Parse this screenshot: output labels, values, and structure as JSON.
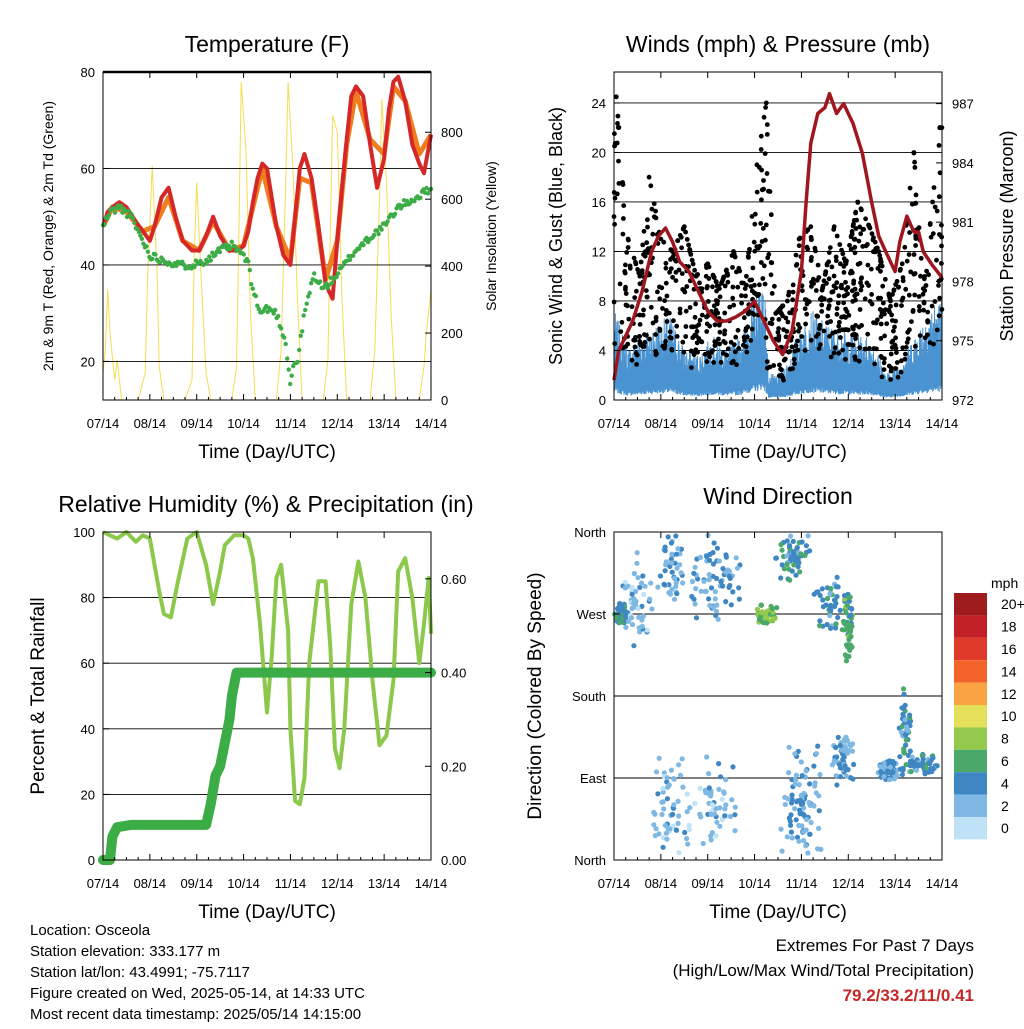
{
  "x_ticks": [
    "07/14",
    "08/14",
    "09/14",
    "10/14",
    "11/14",
    "12/14",
    "13/14",
    "14/14"
  ],
  "x_label": "Time (Day/UTC)",
  "colors": {
    "temp2m": "#d62728",
    "temp9m": "#f07d1d",
    "dew": "#3cac46",
    "solar": "#f5dd52",
    "gust": "#000000",
    "wind": "#4a93d1",
    "pressure": "#a0161f",
    "rh": "#8cc84b",
    "rain": "#3cac46",
    "extremes_values": "#c62828"
  },
  "colorbar": {
    "unit": "mph",
    "labels": [
      "20+",
      "18",
      "16",
      "14",
      "12",
      "10",
      "8",
      "6",
      "4",
      "2",
      "0"
    ],
    "colors": [
      "#9e1b1e",
      "#c12026",
      "#e03b2a",
      "#f2632a",
      "#f9a343",
      "#e4e05a",
      "#93c94d",
      "#4aa86a",
      "#3f87c2",
      "#7fb8e3",
      "#bfe2f7"
    ]
  },
  "chart_data": [
    {
      "type": "line",
      "title": "Temperature (F)",
      "xlabel": "Time (Day/UTC)",
      "ylabel": "2m & 9m T (Red, Orange) & 2m Td (Green)",
      "ylabel_right": "Solar Insolation (Yellow)",
      "xlim": [
        0,
        7
      ],
      "ylim": [
        12,
        80
      ],
      "y_ticks": [
        20,
        40,
        60,
        80
      ],
      "ylim_right": [
        0,
        980
      ],
      "y_ticks_right": [
        0,
        200,
        400,
        600,
        800
      ],
      "grid": true,
      "series": [
        {
          "key": "temp2m",
          "x": [
            0,
            0.1,
            0.2,
            0.35,
            0.5,
            0.7,
            0.85,
            1.0,
            1.1,
            1.25,
            1.4,
            1.55,
            1.7,
            1.9,
            2.05,
            2.2,
            2.35,
            2.5,
            2.7,
            2.9,
            3.0,
            3.1,
            3.2,
            3.3,
            3.4,
            3.5,
            3.7,
            3.85,
            4.0,
            4.1,
            4.2,
            4.3,
            4.45,
            4.6,
            4.75,
            4.9,
            5.0,
            5.1,
            5.2,
            5.3,
            5.4,
            5.55,
            5.7,
            5.85,
            6.0,
            6.1,
            6.2,
            6.3,
            6.45,
            6.6,
            6.75,
            6.85,
            7.0
          ],
          "y": [
            48,
            51,
            52,
            53,
            52,
            49,
            47,
            45,
            48,
            54,
            56,
            50,
            45,
            43,
            43,
            46,
            50,
            46,
            43,
            43,
            44,
            47,
            53,
            58,
            61,
            60,
            48,
            42,
            40,
            50,
            60,
            63,
            58,
            48,
            36,
            33,
            45,
            56,
            66,
            75,
            77,
            75,
            65,
            56,
            62,
            72,
            78,
            79,
            74,
            65,
            61,
            59,
            67
          ]
        },
        {
          "key": "temp9m",
          "x": [
            0,
            0.2,
            0.5,
            0.85,
            1.1,
            1.4,
            1.7,
            2.05,
            2.35,
            2.7,
            3.0,
            3.2,
            3.4,
            3.7,
            4.0,
            4.2,
            4.45,
            4.75,
            5.0,
            5.2,
            5.4,
            5.7,
            6.0,
            6.2,
            6.45,
            6.75,
            7.0
          ],
          "y": [
            48,
            52,
            51,
            47,
            48,
            54,
            45,
            43,
            49,
            43,
            44,
            52,
            60,
            48,
            41,
            58,
            57,
            37,
            45,
            65,
            76,
            66,
            63,
            77,
            74,
            63,
            67
          ]
        },
        {
          "key": "dew",
          "x": [
            0,
            0.15,
            0.35,
            0.6,
            0.8,
            0.9,
            1.0,
            1.3,
            1.6,
            1.9,
            2.2,
            2.5,
            2.75,
            3.0,
            3.1,
            3.2,
            3.35,
            3.5,
            3.7,
            3.9,
            4.0,
            4.05,
            4.15,
            4.3,
            4.5,
            4.7,
            5.0,
            5.3,
            5.6,
            6.0,
            6.3,
            6.7,
            7.0
          ],
          "y": [
            48,
            51,
            52,
            50,
            46,
            44,
            42,
            41,
            40,
            40,
            41,
            43,
            44,
            42,
            40,
            35,
            30,
            31,
            30,
            24,
            15,
            19,
            20,
            30,
            38,
            35,
            38,
            42,
            45,
            48,
            52,
            54,
            56
          ]
        },
        {
          "key": "solar",
          "x": [
            0,
            0.05,
            0.1,
            0.15,
            0.25,
            0.3,
            0.4,
            0.6,
            0.75,
            0.9,
            0.95,
            1.05,
            1.15,
            1.2,
            1.3,
            1.6,
            1.75,
            1.9,
            1.95,
            2.0,
            2.1,
            2.2,
            2.3,
            2.6,
            2.75,
            2.85,
            2.9,
            2.95,
            3.05,
            3.15,
            3.25,
            3.6,
            3.7,
            3.8,
            3.9,
            3.95,
            4.05,
            4.15,
            4.25,
            4.6,
            4.7,
            4.8,
            4.85,
            4.9,
            5.0,
            5.1,
            5.2,
            5.6,
            5.7,
            5.8,
            5.9,
            5.95,
            6.05,
            6.15,
            6.25,
            6.6,
            6.75,
            6.85,
            6.9,
            7.0
          ],
          "y": [
            80,
            150,
            330,
            200,
            60,
            120,
            0,
            0,
            0,
            80,
            350,
            700,
            400,
            100,
            0,
            0,
            0,
            60,
            450,
            650,
            350,
            80,
            0,
            0,
            0,
            100,
            500,
            950,
            750,
            250,
            0,
            0,
            0,
            150,
            650,
            950,
            700,
            300,
            0,
            0,
            0,
            120,
            500,
            850,
            800,
            300,
            0,
            0,
            0,
            150,
            600,
            900,
            650,
            250,
            0,
            0,
            0,
            100,
            200,
            330
          ]
        }
      ]
    },
    {
      "type": "scatter",
      "title": "Winds (mph) & Pressure (mb)",
      "xlabel": "Time (Day/UTC)",
      "ylabel": "Sonic Wind & Gust (Blue, Black)",
      "ylabel_right": "Station Pressure (Maroon)",
      "xlim": [
        0,
        7
      ],
      "ylim": [
        0,
        26.5
      ],
      "y_ticks": [
        0,
        4,
        8,
        12,
        16,
        20,
        24
      ],
      "ylim_right": [
        972,
        988.6
      ],
      "y_ticks_right": [
        972,
        975,
        978,
        981,
        984,
        987
      ],
      "grid": true,
      "wind_envelope": {
        "x": [
          0,
          0.3,
          0.6,
          0.9,
          1.2,
          1.5,
          1.8,
          2.1,
          2.4,
          2.7,
          3.0,
          3.2,
          3.3,
          3.5,
          3.7,
          3.9,
          4.2,
          4.5,
          4.8,
          5.1,
          5.4,
          5.6,
          5.8,
          6.1,
          6.4,
          6.7,
          7.0
        ],
        "y": [
          7,
          4,
          5,
          6,
          6.5,
          4,
          3.5,
          5,
          4,
          5,
          8,
          10,
          2,
          2,
          3,
          5,
          7,
          6,
          5.5,
          5,
          5,
          4,
          2,
          3,
          5,
          7,
          8
        ]
      },
      "gust_peaks": {
        "x": [
          0.05,
          0.3,
          0.55,
          0.75,
          1.0,
          1.25,
          1.5,
          1.75,
          2.0,
          2.25,
          2.55,
          2.8,
          3.05,
          3.25,
          3.45,
          3.7,
          3.95,
          4.2,
          4.45,
          4.7,
          4.95,
          5.2,
          5.45,
          5.65,
          5.9,
          6.15,
          6.4,
          6.6,
          6.8,
          6.95
        ],
        "y": [
          24.5,
          13,
          10,
          18,
          13,
          12,
          14,
          10,
          11,
          9,
          12,
          9,
          19,
          24,
          7,
          8,
          13,
          14,
          9,
          14,
          11,
          16,
          14,
          12,
          8,
          11,
          20,
          9,
          16,
          22
        ]
      },
      "pressure": {
        "x": [
          0,
          0.1,
          0.2,
          0.4,
          0.6,
          0.8,
          0.95,
          1.1,
          1.25,
          1.4,
          1.6,
          1.8,
          2.0,
          2.2,
          2.4,
          2.6,
          2.8,
          3.0,
          3.2,
          3.4,
          3.6,
          3.8,
          4.0,
          4.1,
          4.2,
          4.35,
          4.5,
          4.6,
          4.75,
          4.9,
          5.1,
          5.3,
          5.5,
          5.65,
          5.8,
          6.0,
          6.1,
          6.25,
          6.4,
          6.5,
          6.6,
          6.8,
          7.0
        ],
        "y": [
          973,
          974.5,
          975,
          976,
          977.5,
          979.5,
          980.3,
          980.7,
          980,
          979,
          978.5,
          977.5,
          976.5,
          976,
          976,
          976.2,
          976.5,
          977,
          976,
          975,
          974.3,
          975.5,
          978.5,
          982,
          985,
          986.5,
          986.8,
          987.5,
          986.5,
          987,
          986,
          984.5,
          982,
          980.3,
          979.5,
          978.5,
          980,
          981.3,
          980.5,
          980.5,
          979.5,
          978.8,
          978.2
        ]
      }
    },
    {
      "type": "line",
      "title": "Relative Humidity (%) & Precipitation (in)",
      "xlabel": "Time (Day/UTC)",
      "ylabel": "Percent & Total Rainfall",
      "xlim": [
        0,
        7
      ],
      "ylim": [
        0,
        100
      ],
      "y_ticks": [
        0,
        20,
        40,
        60,
        80,
        100
      ],
      "ylim_right": [
        0,
        0.7
      ],
      "y_ticks_right": [
        "0.00",
        "0.20",
        "0.40",
        "0.60"
      ],
      "grid": true,
      "series": [
        {
          "key": "rh",
          "x": [
            0,
            0.15,
            0.3,
            0.5,
            0.7,
            0.85,
            1.0,
            1.1,
            1.2,
            1.3,
            1.45,
            1.6,
            1.8,
            1.9,
            2.0,
            2.2,
            2.35,
            2.5,
            2.6,
            2.8,
            3.0,
            3.1,
            3.2,
            3.35,
            3.5,
            3.6,
            3.7,
            3.8,
            3.95,
            4.0,
            4.1,
            4.2,
            4.3,
            4.4,
            4.6,
            4.75,
            4.85,
            4.95,
            5.05,
            5.15,
            5.3,
            5.45,
            5.6,
            5.75,
            5.9,
            6.05,
            6.2,
            6.3,
            6.45,
            6.6,
            6.75,
            6.85,
            6.95,
            7.0
          ],
          "y": [
            100,
            99,
            98,
            100,
            97,
            99,
            98,
            90,
            82,
            75,
            74,
            85,
            98,
            99,
            100,
            90,
            78,
            88,
            96,
            99,
            99,
            98,
            92,
            72,
            45,
            62,
            86,
            90,
            70,
            40,
            18,
            17,
            25,
            60,
            85,
            85,
            65,
            34,
            28,
            40,
            78,
            91,
            80,
            55,
            35,
            38,
            55,
            88,
            92,
            80,
            60,
            72,
            86,
            69
          ]
        },
        {
          "key": "rain",
          "x": [
            0,
            0.15,
            0.2,
            0.3,
            0.6,
            1.0,
            1.5,
            2.0,
            2.2,
            2.3,
            2.4,
            2.5,
            2.6,
            2.7,
            2.75,
            2.85,
            3.0,
            3.5,
            4.0,
            5.0,
            6.0,
            7.0
          ],
          "y": [
            0.0,
            0.0,
            0.05,
            0.07,
            0.075,
            0.075,
            0.075,
            0.075,
            0.075,
            0.12,
            0.18,
            0.2,
            0.25,
            0.3,
            0.35,
            0.4,
            0.4,
            0.4,
            0.4,
            0.4,
            0.4,
            0.4
          ]
        }
      ]
    },
    {
      "type": "scatter",
      "title": "Wind Direction",
      "xlabel": "Time (Day/UTC)",
      "ylabel": "Direction (Colored By Speed)",
      "xlim": [
        0,
        7
      ],
      "ylim": [
        0,
        360
      ],
      "y_ticks": [
        "North",
        "East",
        "South",
        "West",
        "North"
      ],
      "grid": true,
      "point_groups": [
        {
          "x_center": 0.15,
          "y_center": 270,
          "x_spread": 0.15,
          "y_spread": 12,
          "speed": 5,
          "n": 60
        },
        {
          "x_center": 0.5,
          "y_center": 290,
          "x_spread": 0.4,
          "y_spread": 60,
          "speed": 2,
          "n": 50
        },
        {
          "x_center": 1.2,
          "y_center": 320,
          "x_spread": 0.3,
          "y_spread": 40,
          "speed": 3,
          "n": 45
        },
        {
          "x_center": 1.2,
          "y_center": 60,
          "x_spread": 0.5,
          "y_spread": 60,
          "speed": 2,
          "n": 60
        },
        {
          "x_center": 2.2,
          "y_center": 310,
          "x_spread": 0.6,
          "y_spread": 50,
          "speed": 3,
          "n": 70
        },
        {
          "x_center": 2.2,
          "y_center": 60,
          "x_spread": 0.5,
          "y_spread": 60,
          "speed": 2,
          "n": 50
        },
        {
          "x_center": 3.25,
          "y_center": 270,
          "x_spread": 0.25,
          "y_spread": 12,
          "speed": 7,
          "n": 60
        },
        {
          "x_center": 3.8,
          "y_center": 330,
          "x_spread": 0.4,
          "y_spread": 30,
          "speed": 4,
          "n": 60
        },
        {
          "x_center": 4.0,
          "y_center": 60,
          "x_spread": 0.45,
          "y_spread": 70,
          "speed": 3,
          "n": 90
        },
        {
          "x_center": 4.6,
          "y_center": 280,
          "x_spread": 0.35,
          "y_spread": 40,
          "speed": 4,
          "n": 45
        },
        {
          "x_center": 5.0,
          "y_center": 260,
          "x_spread": 0.12,
          "y_spread": 50,
          "speed": 6,
          "n": 50
        },
        {
          "x_center": 4.9,
          "y_center": 110,
          "x_spread": 0.25,
          "y_spread": 30,
          "speed": 3,
          "n": 50
        },
        {
          "x_center": 5.9,
          "y_center": 100,
          "x_spread": 0.3,
          "y_spread": 15,
          "speed": 3,
          "n": 60
        },
        {
          "x_center": 6.2,
          "y_center": 140,
          "x_spread": 0.15,
          "y_spread": 50,
          "speed": 4,
          "n": 45
        },
        {
          "x_center": 6.6,
          "y_center": 105,
          "x_spread": 0.35,
          "y_spread": 12,
          "speed": 4,
          "n": 55
        }
      ]
    }
  ],
  "info": {
    "location": "Location: Osceola",
    "elevation": "Station elevation: 333.177 m",
    "latlon": "Station lat/lon: 43.4991; -75.7117",
    "created": "Figure created on Wed, 2025-05-14, at 14:33 UTC",
    "recent": "Most recent data timestamp: 2025/05/14 14:15:00"
  },
  "extremes": {
    "line1": "Extremes For Past 7 Days",
    "line2": "(High/Low/Max Wind/Total Precipitation)",
    "values": "79.2/33.2/11/0.41"
  }
}
